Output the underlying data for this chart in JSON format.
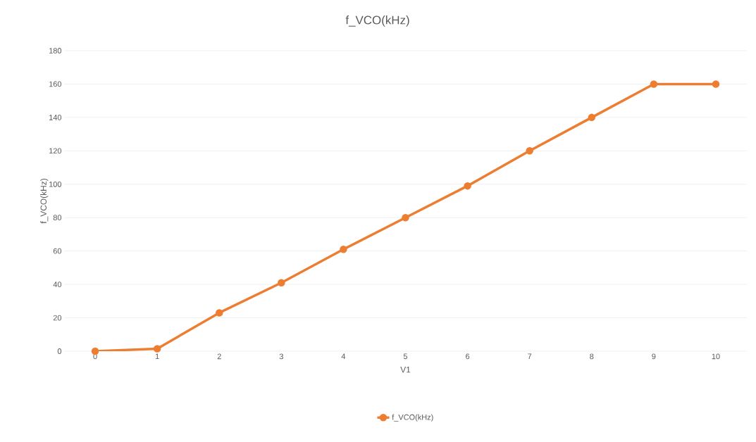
{
  "chart_data": {
    "type": "line",
    "title": "f_VCO(kHz)",
    "xlabel": "V1",
    "ylabel": "f_VCO(kHz)",
    "categories": [
      "0",
      "1",
      "2",
      "3",
      "4",
      "5",
      "6",
      "7",
      "8",
      "9",
      "10"
    ],
    "series": [
      {
        "name": "f_VCO(kHz)",
        "color": "#ed7d31",
        "values": [
          0,
          1.5,
          23,
          41,
          61,
          80,
          99,
          120,
          140,
          160,
          160
        ]
      }
    ],
    "ylim": [
      0,
      180
    ],
    "yticks": [
      0,
      20,
      40,
      60,
      80,
      100,
      120,
      140,
      160,
      180
    ],
    "grid": "y",
    "legend": "bottom",
    "marker": "circle",
    "line_style": "solid"
  }
}
